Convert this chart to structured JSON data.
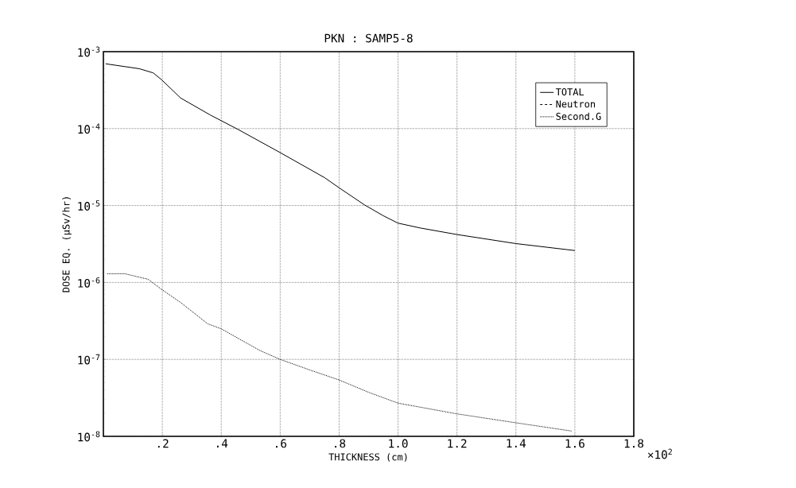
{
  "chart_data": {
    "type": "line",
    "title": "PKN : SAMP5-8",
    "xlabel": "THICKNESS (cm)",
    "ylabel": "DOSE EQ. (μSv/hr)",
    "annotations": [
      "×10$^{2}$"
    ],
    "log": "y",
    "grid": true,
    "legend": "top right",
    "xlim": [
      0,
      1.8
    ],
    "ylim": [
      1e-08,
      0.001
    ],
    "xticks": [
      {
        "value": 0.2,
        "label": ".2"
      },
      {
        "value": 0.4,
        "label": ".4"
      },
      {
        "value": 0.6,
        "label": ".6"
      },
      {
        "value": 0.8,
        "label": ".8"
      },
      {
        "value": 1.0,
        "label": "1.0"
      },
      1.2,
      1.4,
      1.6,
      1.8
    ],
    "yticks": [
      {
        "value": 1e-08,
        "label": "10$^{-8}$"
      },
      {
        "value": 1e-07,
        "label": "10$^{-7}$"
      },
      {
        "value": 1e-06,
        "label": "10$^{-6}$"
      },
      {
        "value": 1e-05,
        "label": "10$^{-5}$"
      },
      {
        "value": 0.0001,
        "label": "10$^{-4}$"
      },
      {
        "value": 0.001,
        "label": "10$^{-3}$"
      }
    ],
    "series": [
      {
        "name": "TOTAL",
        "color": "#000000",
        "line_style": "solid",
        "x": [
          0.008,
          0.122,
          0.169,
          0.198,
          0.262,
          0.363,
          0.456,
          0.599,
          0.751,
          0.8,
          0.886,
          0.949,
          1.0,
          1.076,
          1.2,
          1.4,
          1.6
        ],
        "values": [
          0.000695,
          0.0006,
          0.00053,
          0.00043,
          0.00025,
          0.00015,
          9.8e-05,
          4.9e-05,
          2.3e-05,
          1.7e-05,
          1.02e-05,
          7.4e-06,
          5.9e-06,
          5.1e-06,
          4.2e-06,
          3.2e-06,
          2.6e-06
        ]
      },
      {
        "name": "Neutron",
        "color": "#000000",
        "line_style": "dashed"
      },
      {
        "name": "Second.G",
        "color": "#000000",
        "line_style": "dotted",
        "x": [
          0.013,
          0.072,
          0.152,
          0.198,
          0.262,
          0.354,
          0.4,
          0.532,
          0.6,
          0.7,
          0.8,
          0.903,
          1.0,
          1.2,
          1.4,
          1.59
        ],
        "values": [
          1.3e-06,
          1.3e-06,
          1.1e-06,
          8.1e-07,
          5.5e-07,
          2.9e-07,
          2.5e-07,
          1.3e-07,
          1e-07,
          7.3e-08,
          5.4e-08,
          3.7e-08,
          2.7e-08,
          1.96e-08,
          1.5e-08,
          1.17e-08
        ]
      }
    ]
  }
}
